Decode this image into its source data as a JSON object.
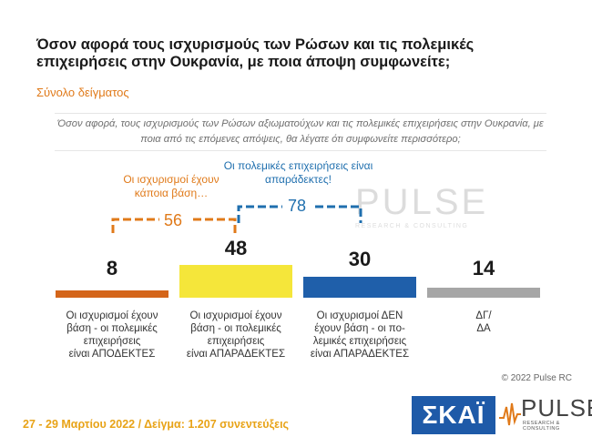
{
  "header": {
    "title": "Όσον αφορά τους ισχυρισμούς των Ρώσων και τις πολεμικές επιχειρήσεις στην Ουκρανία, με ποια άποψη συμφωνείτε;",
    "subtitle": "Σύνολο δείγματος",
    "question": "Όσον αφορά, τους ισχυρισμούς των Ρώσων αξιωματούχων και τις πολεμικές επιχειρήσεις στην Ουκρανία, με ποια από τις επόμενες απόψεις, θα λέγατε ότι συμφωνείτε περισσότερο;"
  },
  "annotations": {
    "left_text": "Οι ισχυρισμοί έχουν κάποια βάση…",
    "left_total": "56",
    "right_text": "Οι πολεμικές επιχειρήσεις είναι απαράδεκτες!",
    "right_total": "78"
  },
  "chart_data": {
    "type": "bar",
    "categories": [
      "Οι ισχυρισμοί έχουν βάση - οι πολεμικές επιχειρήσεις είναι ΑΠΟΔΕΚΤΕΣ",
      "Οι ισχυρισμοί έχουν βάση - οι πολεμικές επιχειρήσεις είναι ΑΠΑΡΑΔΕΚΤΕΣ",
      "Οι ισχυρισμοί ΔΕΝ έχουν βάση - οι πολεμικές επιχειρήσεις είναι ΑΠΑΡΑΔΕΚΤΕΣ",
      "ΔΓ/ ΔΑ"
    ],
    "category_lines": [
      [
        "Οι ισχυρισμοί έχουν",
        "βάση - οι πολεμικές",
        "επιχειρήσεις",
        "είναι ΑΠΟΔΕΚΤΕΣ"
      ],
      [
        "Οι ισχυρισμοί έχουν",
        "βάση - οι πολεμικές",
        "επιχειρήσεις",
        "είναι ΑΠΑΡΑΔΕΚΤΕΣ"
      ],
      [
        "Οι ισχυρισμοί ΔΕΝ",
        "έχουν βάση - οι πο-",
        "λεμικές επιχειρήσεις",
        "είναι ΑΠΑΡΑΔΕΚΤΕΣ"
      ],
      [
        "ΔΓ/",
        "ΔΑ"
      ]
    ],
    "values": [
      8,
      48,
      30,
      14
    ],
    "colors": [
      "#d4651a",
      "#f5e63a",
      "#1f5faa",
      "#a6a6a6"
    ]
  },
  "footer": {
    "date_sample": "27 - 29 Μαρτίου 2022 / Δείγμα: 1.207 συνεντεύξεις",
    "copyright": "© 2022 Pulse RC"
  },
  "logos": {
    "skai": "ΣΚΑΪ",
    "pulse": "PULSE",
    "pulse_sub": "RESEARCH & CONSULTING"
  }
}
